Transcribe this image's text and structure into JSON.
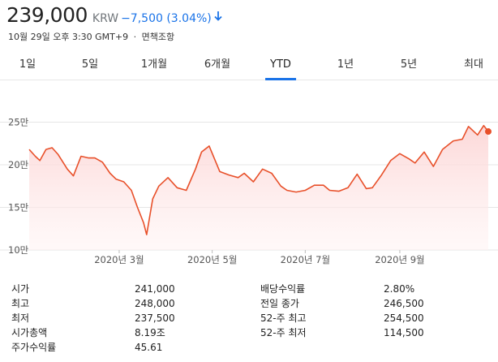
{
  "quote": {
    "price": "239,000",
    "currency": "KRW",
    "change": "−7,500 (3.04%)",
    "direction": "down",
    "timestamp": "10월 29일 오후 3:30 GMT+9",
    "separator": "·",
    "disclaimer": "면책조항"
  },
  "tabs": [
    {
      "label": "1일"
    },
    {
      "label": "5일"
    },
    {
      "label": "1개월"
    },
    {
      "label": "6개월"
    },
    {
      "label": "YTD",
      "active": true
    },
    {
      "label": "1년"
    },
    {
      "label": "5년"
    },
    {
      "label": "최대"
    }
  ],
  "chart_data": {
    "type": "area",
    "title": "",
    "xlabel": "",
    "ylabel": "",
    "ylim": [
      10,
      26
    ],
    "y_unit": "만 KRW",
    "yticks": [
      10,
      15,
      20,
      25
    ],
    "ytick_labels": [
      "10만",
      "15만",
      "20만",
      "25만"
    ],
    "xticks": [
      "2020-03-01",
      "2020-05-01",
      "2020-07-01",
      "2020-09-01"
    ],
    "xtick_labels": [
      "2020년 3월",
      "2020년 5월",
      "2020년 7월",
      "2020년 9월"
    ],
    "xlim": [
      "2020-01-02",
      "2020-10-29"
    ],
    "grid": "horizontal",
    "colors": {
      "line": "#e8502a",
      "fill": "#fde3e3",
      "grid": "#e6e6e6"
    },
    "series": [
      {
        "x": [
          "2020-01-02",
          "2020-01-06",
          "2020-01-09",
          "2020-01-13",
          "2020-01-17",
          "2020-01-21",
          "2020-01-27",
          "2020-01-31",
          "2020-02-05",
          "2020-02-10",
          "2020-02-14",
          "2020-02-19",
          "2020-02-24",
          "2020-02-28",
          "2020-03-04",
          "2020-03-09",
          "2020-03-13",
          "2020-03-17",
          "2020-03-19",
          "2020-03-23",
          "2020-03-27",
          "2020-04-02",
          "2020-04-08",
          "2020-04-14",
          "2020-04-20",
          "2020-04-24",
          "2020-04-29",
          "2020-05-06",
          "2020-05-12",
          "2020-05-18",
          "2020-05-22",
          "2020-05-28",
          "2020-06-03",
          "2020-06-09",
          "2020-06-15",
          "2020-06-19",
          "2020-06-25",
          "2020-07-01",
          "2020-07-07",
          "2020-07-13",
          "2020-07-17",
          "2020-07-23",
          "2020-07-29",
          "2020-08-04",
          "2020-08-10",
          "2020-08-14",
          "2020-08-20",
          "2020-08-26",
          "2020-09-01",
          "2020-09-07",
          "2020-09-11",
          "2020-09-17",
          "2020-09-23",
          "2020-09-29",
          "2020-10-06",
          "2020-10-12",
          "2020-10-16",
          "2020-10-22",
          "2020-10-26",
          "2020-10-29"
        ],
        "y": [
          21.8,
          21.0,
          20.5,
          21.8,
          22.0,
          21.2,
          19.5,
          18.7,
          21.0,
          20.8,
          20.8,
          20.3,
          19.0,
          18.3,
          18.0,
          17.0,
          15.0,
          13.2,
          11.8,
          16.0,
          17.5,
          18.5,
          17.3,
          17.0,
          19.5,
          21.5,
          22.2,
          19.2,
          18.8,
          18.5,
          19.0,
          18.0,
          19.5,
          19.0,
          17.5,
          17.0,
          16.8,
          17.0,
          17.6,
          17.6,
          17.0,
          16.9,
          17.3,
          18.9,
          17.2,
          17.3,
          18.8,
          20.5,
          21.3,
          20.7,
          20.2,
          21.5,
          19.8,
          21.8,
          22.8,
          23.0,
          24.5,
          23.5,
          24.6,
          23.9
        ]
      }
    ]
  },
  "stats": {
    "left": [
      {
        "label": "시가",
        "value": "241,000"
      },
      {
        "label": "최고",
        "value": "248,000"
      },
      {
        "label": "최저",
        "value": "237,500"
      },
      {
        "label": "시가총액",
        "value": "8.19조"
      },
      {
        "label": "주가수익률",
        "value": "45.61"
      }
    ],
    "right": [
      {
        "label": "배당수익률",
        "value": "2.80%"
      },
      {
        "label": "전일 종가",
        "value": "246,500"
      },
      {
        "label": "52-주 최고",
        "value": "254,500"
      },
      {
        "label": "52-주 최저",
        "value": "114,500"
      }
    ]
  }
}
